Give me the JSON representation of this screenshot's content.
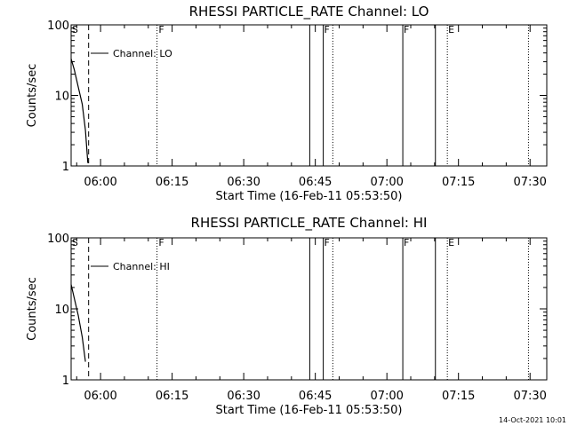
{
  "timestamp": "14-Oct-2021 10:01",
  "chart_data": [
    {
      "type": "line",
      "title": "RHESSI PARTICLE_RATE Channel: LO",
      "xlabel": "Start Time (16-Feb-11 05:53:50)",
      "ylabel": "Counts/sec",
      "yscale": "log",
      "ylim": [
        1,
        100
      ],
      "y_ticks": [
        "1",
        "10",
        "100"
      ],
      "xlim": [
        "05:53:50",
        "07:33:30"
      ],
      "x_ticks": [
        "06:00",
        "06:15",
        "06:30",
        "06:45",
        "07:00",
        "07:15",
        "07:30"
      ],
      "legend": {
        "label": "Channel: LO",
        "placement": "top-left"
      },
      "series": [
        {
          "name": "Channel: LO",
          "x": [
            "05:53:50",
            "05:54:30",
            "05:55:20",
            "05:56:10",
            "05:56:50",
            "05:57:20"
          ],
          "y": [
            33,
            23,
            13,
            7.5,
            3.2,
            1.1
          ]
        }
      ],
      "events": [
        {
          "time": "05:57:30",
          "style": "dashed",
          "label": "S",
          "label_time": "05:54:00"
        },
        {
          "time": "06:11:50",
          "style": "dotted",
          "label": "F",
          "label_time": "06:12:10"
        },
        {
          "time": "06:43:50",
          "style": "solid",
          "label": ""
        },
        {
          "time": "06:46:40",
          "style": "solid",
          "label": "F",
          "label_time": "06:46:50"
        },
        {
          "time": "06:48:40",
          "style": "dotted",
          "label": ""
        },
        {
          "time": "07:03:20",
          "style": "solid",
          "label": "F",
          "label_time": "07:03:30"
        },
        {
          "time": "07:10:10",
          "style": "solid",
          "label": ""
        },
        {
          "time": "07:12:40",
          "style": "dotted",
          "label": "E",
          "label_time": "07:12:50"
        },
        {
          "time": "07:29:40",
          "style": "dotted",
          "label": ""
        }
      ]
    },
    {
      "type": "line",
      "title": "RHESSI PARTICLE_RATE Channel: HI",
      "xlabel": "Start Time (16-Feb-11 05:53:50)",
      "ylabel": "Counts/sec",
      "yscale": "log",
      "ylim": [
        1,
        100
      ],
      "y_ticks": [
        "1",
        "10",
        "100"
      ],
      "xlim": [
        "05:53:50",
        "07:33:30"
      ],
      "x_ticks": [
        "06:00",
        "06:15",
        "06:30",
        "06:45",
        "07:00",
        "07:15",
        "07:30"
      ],
      "legend": {
        "label": "Channel: HI",
        "placement": "top-left"
      },
      "series": [
        {
          "name": "Channel: HI",
          "x": [
            "05:53:50",
            "05:54:30",
            "05:55:20",
            "05:56:10",
            "05:56:50"
          ],
          "y": [
            22,
            14,
            8,
            4,
            1.8
          ]
        }
      ],
      "events": [
        {
          "time": "05:57:30",
          "style": "dashed",
          "label": "S",
          "label_time": "05:54:00"
        },
        {
          "time": "06:11:50",
          "style": "dotted",
          "label": "F",
          "label_time": "06:12:10"
        },
        {
          "time": "06:43:50",
          "style": "solid",
          "label": ""
        },
        {
          "time": "06:46:40",
          "style": "solid",
          "label": "F",
          "label_time": "06:46:50"
        },
        {
          "time": "06:48:40",
          "style": "dotted",
          "label": ""
        },
        {
          "time": "07:03:20",
          "style": "solid",
          "label": "F",
          "label_time": "07:03:30"
        },
        {
          "time": "07:10:10",
          "style": "solid",
          "label": ""
        },
        {
          "time": "07:12:40",
          "style": "dotted",
          "label": "E",
          "label_time": "07:12:50"
        },
        {
          "time": "07:29:40",
          "style": "dotted",
          "label": ""
        }
      ]
    }
  ]
}
